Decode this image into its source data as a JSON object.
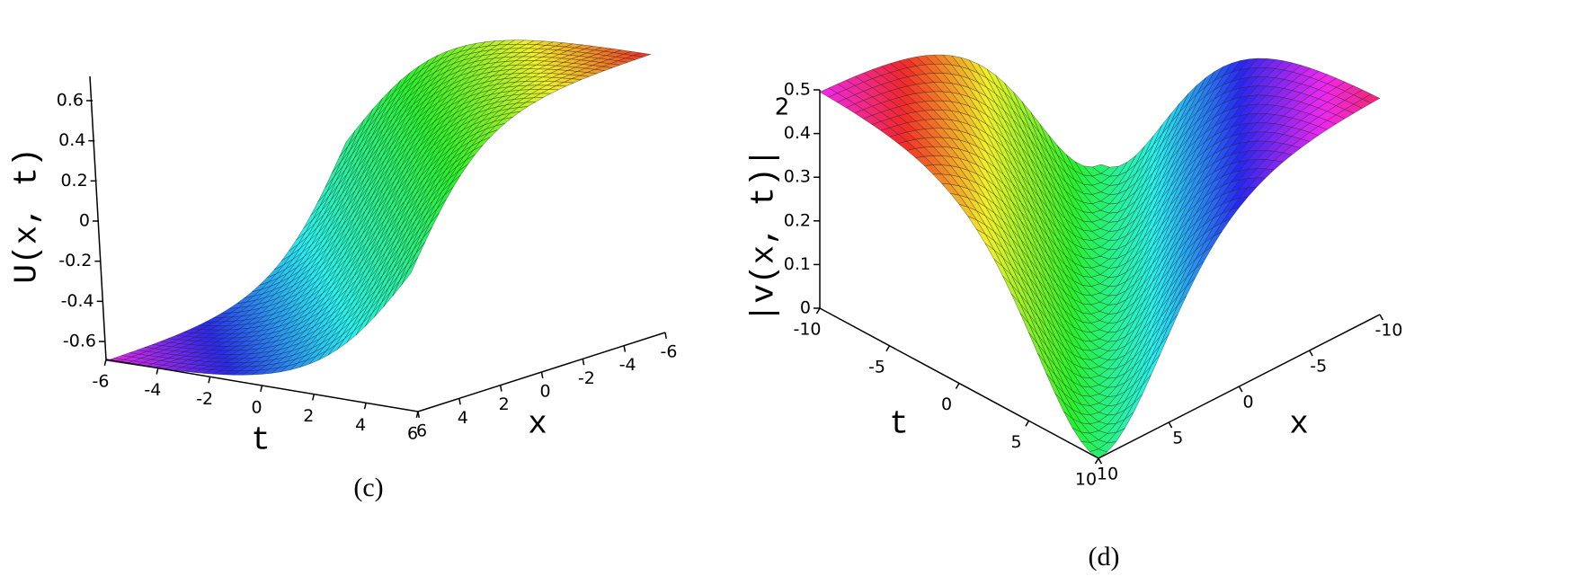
{
  "chart_data": [
    {
      "type": "surface",
      "caption": "(c)",
      "z_label": "U(x, t)",
      "t_label": "t",
      "x_label": "x",
      "zticks": [
        -0.6,
        -0.4,
        -0.2,
        0,
        0.2,
        0.4,
        0.6
      ],
      "tticks": [
        -6,
        -4,
        -2,
        0,
        2,
        4,
        6
      ],
      "xticks": [
        6,
        4,
        2,
        0,
        -2,
        -4,
        -6
      ]
    },
    {
      "type": "surface",
      "caption": "(d)",
      "z_label": "|v(x, t)|",
      "z_label_exponent": "2",
      "t_label": "t",
      "x_label": "x",
      "zticks": [
        0,
        0.1,
        0.2,
        0.3,
        0.4,
        0.5
      ],
      "tticks": [
        -10,
        -5,
        0,
        5,
        10
      ],
      "xticks": [
        10,
        5,
        0,
        -5,
        -10
      ]
    }
  ]
}
